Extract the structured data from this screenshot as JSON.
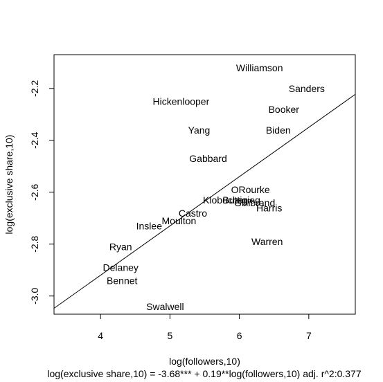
{
  "chart_data": {
    "type": "scatter",
    "marker": "text-label",
    "xlabel": "log(followers,10)",
    "ylabel": "log(exclusive share,10)",
    "caption": "log(exclusive share,10) = -3.68*** + 0.19**log(followers,10)  adj. r^2:0.377",
    "xlim": [
      3.33,
      7.67
    ],
    "ylim": [
      -3.07,
      -2.07
    ],
    "x_ticks": [
      {
        "value": 4,
        "label": "4"
      },
      {
        "value": 5,
        "label": "5"
      },
      {
        "value": 6,
        "label": "6"
      },
      {
        "value": 7,
        "label": "7"
      }
    ],
    "y_ticks": [
      {
        "value": -3.0,
        "label": "-3.0"
      },
      {
        "value": -2.8,
        "label": "-2.8"
      },
      {
        "value": -2.6,
        "label": "-2.6"
      },
      {
        "value": -2.4,
        "label": "-2.4"
      },
      {
        "value": -2.2,
        "label": "-2.2"
      }
    ],
    "grid": false,
    "legend": "none",
    "regression_line": {
      "intercept": -3.68,
      "slope": 0.19
    },
    "points": [
      {
        "label": "Williamson",
        "x": 6.29,
        "y": -2.12
      },
      {
        "label": "Sanders",
        "x": 6.97,
        "y": -2.2
      },
      {
        "label": "Hickenlooper",
        "x": 5.16,
        "y": -2.25
      },
      {
        "label": "Booker",
        "x": 6.64,
        "y": -2.28
      },
      {
        "label": "Yang",
        "x": 5.42,
        "y": -2.36
      },
      {
        "label": "Biden",
        "x": 6.56,
        "y": -2.36
      },
      {
        "label": "Gabbard",
        "x": 5.55,
        "y": -2.47
      },
      {
        "label": "ORourke",
        "x": 6.16,
        "y": -2.59
      },
      {
        "label": "Klobuchar",
        "x": 5.79,
        "y": -2.63
      },
      {
        "label": "Buttigieg",
        "x": 6.03,
        "y": -2.63
      },
      {
        "label": "Gillibrand",
        "x": 6.22,
        "y": -2.64
      },
      {
        "label": "Harris",
        "x": 6.43,
        "y": -2.66
      },
      {
        "label": "Castro",
        "x": 5.33,
        "y": -2.68
      },
      {
        "label": "Moulton",
        "x": 5.13,
        "y": -2.71
      },
      {
        "label": "Inslee",
        "x": 4.7,
        "y": -2.73
      },
      {
        "label": "Warren",
        "x": 6.4,
        "y": -2.79
      },
      {
        "label": "Ryan",
        "x": 4.29,
        "y": -2.81
      },
      {
        "label": "Delaney",
        "x": 4.29,
        "y": -2.89
      },
      {
        "label": "Bennet",
        "x": 4.31,
        "y": -2.94
      },
      {
        "label": "Swalwell",
        "x": 4.93,
        "y": -3.04
      }
    ]
  }
}
